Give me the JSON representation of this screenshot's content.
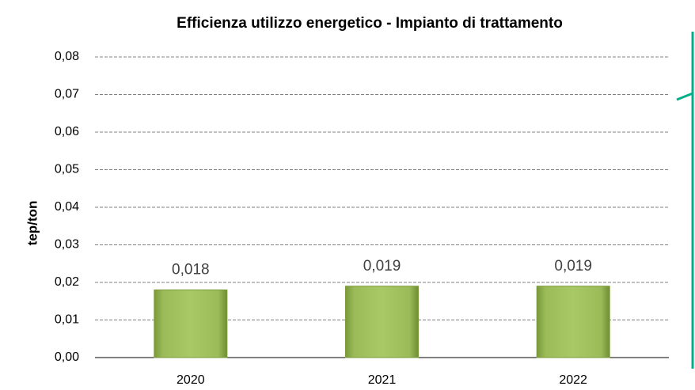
{
  "chart_data": {
    "type": "bar",
    "title": "Efficienza utilizzo energetico - Impianto di trattamento",
    "y_label": "tep/ton",
    "categories": [
      "2020",
      "2021",
      "2022"
    ],
    "values": [
      0.018,
      0.019,
      0.019
    ],
    "value_labels": [
      "0,018",
      "0,019",
      "0,019"
    ],
    "color": "#9bbb59",
    "ylim": [
      0,
      0.08
    ],
    "yticks": [
      {
        "value": 0,
        "label": "0,00"
      },
      {
        "value": 0.01,
        "label": "0,01"
      },
      {
        "value": 0.02,
        "label": "0,02"
      },
      {
        "value": 0.03,
        "label": "0,03"
      },
      {
        "value": 0.04,
        "label": "0,04"
      },
      {
        "value": 0.05,
        "label": "0,05"
      },
      {
        "value": 0.06,
        "label": "0,06"
      },
      {
        "value": 0.07,
        "label": "0,07"
      },
      {
        "value": 0.08,
        "label": "0,08"
      }
    ],
    "grid": true
  }
}
